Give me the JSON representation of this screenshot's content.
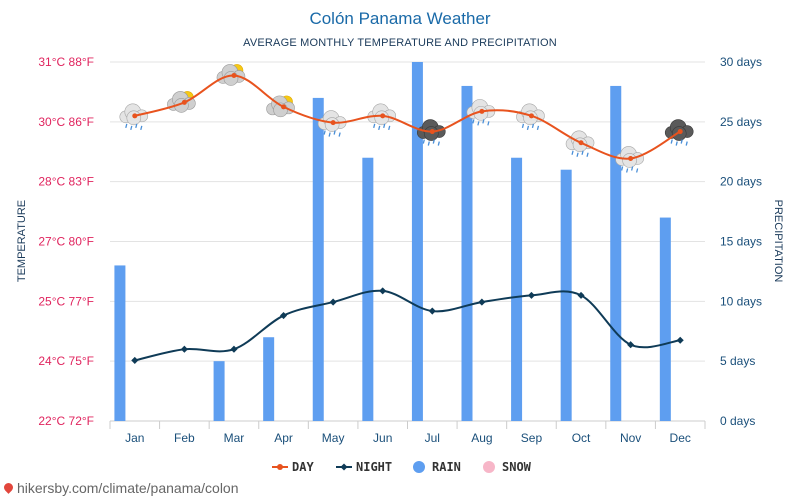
{
  "chart_data": {
    "type": "bar+line",
    "title": "Colón Panama Weather",
    "subtitle": "AVERAGE MONTHLY TEMPERATURE AND PRECIPITATION",
    "ylabel_left": "TEMPERATURE",
    "ylabel_right": "PRECIPITATION",
    "categories": [
      "Jan",
      "Feb",
      "Mar",
      "Apr",
      "May",
      "Jun",
      "Jul",
      "Aug",
      "Sep",
      "Oct",
      "Nov",
      "Dec"
    ],
    "left_ticks": [
      "22°C 72°F",
      "24°C 75°F",
      "25°C 77°F",
      "27°C 80°F",
      "28°C 83°F",
      "30°C 86°F",
      "31°C 88°F"
    ],
    "left_range_f": [
      72,
      88
    ],
    "right_ticks": [
      "0 days",
      "5 days",
      "10 days",
      "15 days",
      "20 days",
      "25 days",
      "30 days"
    ],
    "right_range": [
      0,
      30
    ],
    "series": [
      {
        "name": "DAY",
        "kind": "line",
        "color": "#e8531e",
        "values_f": [
          85.6,
          86.2,
          87.4,
          86.0,
          85.3,
          85.6,
          84.9,
          85.8,
          85.6,
          84.4,
          83.7,
          84.9
        ]
      },
      {
        "name": "NIGHT",
        "kind": "line",
        "color": "#0f3b57",
        "values_f": [
          74.7,
          75.2,
          75.2,
          76.7,
          77.3,
          77.8,
          76.9,
          77.3,
          77.6,
          77.6,
          75.4,
          75.6
        ]
      },
      {
        "name": "RAIN",
        "kind": "bar",
        "color": "#5e9ef0",
        "unit": "days",
        "values": [
          13,
          0,
          5,
          7,
          27,
          22,
          30,
          28,
          22,
          21,
          28,
          17
        ]
      },
      {
        "name": "SNOW",
        "kind": "bar",
        "color": "#f7b6c8",
        "unit": "days",
        "values": [
          0,
          0,
          0,
          0,
          0,
          0,
          0,
          0,
          0,
          0,
          0,
          0
        ]
      }
    ],
    "weather_icons": [
      "rain-cloud",
      "sun-cloud",
      "sun-cloud",
      "sun-cloud",
      "rain-cloud",
      "rain-cloud",
      "storm-cloud",
      "rain-cloud",
      "rain-cloud",
      "rain-cloud",
      "rain-cloud",
      "storm-cloud"
    ],
    "legend_position": "bottom-center",
    "grid": true
  },
  "source": {
    "text": "hikersby.com/climate/panama/colon"
  }
}
